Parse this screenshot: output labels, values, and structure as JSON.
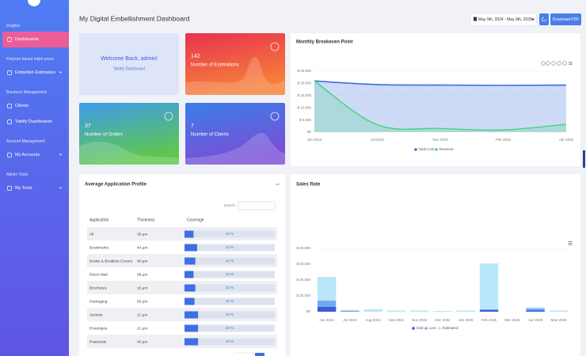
{
  "sidebar": {
    "sections": [
      {
        "heading": "Insights",
        "items": [
          {
            "label": "Dashboards",
            "active": true,
            "submenu": false
          }
        ]
      },
      {
        "heading": "Polymer based inkjet press",
        "items": [
          {
            "label": "Embellish Estimation",
            "active": false,
            "submenu": true
          }
        ]
      },
      {
        "heading": "Business Management",
        "items": [
          {
            "label": "Clients",
            "active": false,
            "submenu": false
          },
          {
            "label": "Taktify Dashboards",
            "active": false,
            "submenu": false
          }
        ]
      },
      {
        "heading": "Account Management",
        "items": [
          {
            "label": "My Accounts",
            "active": false,
            "submenu": true
          }
        ]
      },
      {
        "heading": "Admin Tools",
        "items": [
          {
            "label": "My Tools",
            "active": false,
            "submenu": true
          }
        ]
      }
    ]
  },
  "header": {
    "title": "My Digital Embellishment Dashboard",
    "date_range": "May 9th, 2024 - May 9th, 2025",
    "download_button": "Download PDF"
  },
  "welcome": {
    "title": "Welcome Back, admin!",
    "subtitle": "Taktify Dashboard"
  },
  "stats": [
    {
      "value": 142,
      "label": "Number of Estimations"
    },
    {
      "value": 37,
      "label": "Number of Orders"
    },
    {
      "value": 7,
      "label": "Number of Clients"
    }
  ],
  "application_profile": {
    "title": "Average Application Profile",
    "search_label": "Search:",
    "columns": [
      "Application",
      "Thickness",
      "Coverage"
    ],
    "rows": [
      [
        "All",
        "36 µm",
        {
          "value": 10,
          "label": "10 %"
        }
      ],
      [
        "Bookmarks",
        "44 µm",
        {
          "value": 14,
          "label": "14 %"
        }
      ],
      [
        "Books & Booklets Covers",
        "40 µm",
        {
          "value": 12,
          "label": "12 %"
        }
      ],
      [
        "Direct Mail",
        "58 µm",
        {
          "value": 10,
          "label": "10 %"
        }
      ],
      [
        "Brochures",
        "15 µm",
        {
          "value": 12,
          "label": "12 %"
        }
      ],
      [
        "Packaging",
        "50 µm",
        {
          "value": 11,
          "label": "11 %"
        }
      ],
      [
        "Jackets",
        "21 µm",
        {
          "value": 15,
          "label": "15 %"
        }
      ],
      [
        "Envelopes",
        "21 µm",
        {
          "value": 15,
          "label": "15 %"
        }
      ],
      [
        "Postcards",
        "40 µm",
        {
          "value": 15,
          "label": "15 %"
        }
      ]
    ]
  },
  "chart_data": [
    {
      "type": "line",
      "title": "Monthly Breakeven Point",
      "categories": [
        "Jun 2024",
        "Jul 2024",
        "Nov 2024",
        "Feb 2025",
        "Apr 2025"
      ],
      "series": [
        {
          "name": "Total Cost",
          "color": "#3c6fe0",
          "values": [
            21000,
            19500,
            19300,
            19200,
            19300
          ]
        },
        {
          "name": "Revenue",
          "color": "#4fd38a",
          "values": [
            21000,
            3000,
            1500,
            900,
            3200
          ]
        }
      ],
      "ylim": [
        0,
        25000
      ],
      "yticks": [
        {
          "value": 0,
          "label": "$0"
        },
        {
          "value": 5000,
          "label": "$ 5,000"
        },
        {
          "value": 10000,
          "label": "$ 10,000"
        },
        {
          "value": 15000,
          "label": "$ 15,000"
        },
        {
          "value": 20000,
          "label": "$ 20,000"
        },
        {
          "value": 25000,
          "label": "$ 25,000"
        }
      ],
      "grid": true,
      "area": true
    },
    {
      "type": "bar",
      "stacked": true,
      "title": "Sales Rate",
      "categories": [
        "Jun 2024",
        "Jul 2024",
        "Aug 2024",
        "Sep 2024",
        "Nov 2024",
        "Dec 2024",
        "Jan 2025",
        "Feb 2025",
        "Mar 2025",
        "Apr 2025",
        "May 2025"
      ],
      "series": [
        {
          "name": "Sold",
          "color": "#3b5bdb",
          "values": [
            6000,
            500,
            0,
            0,
            0,
            0,
            0,
            2000,
            0,
            1500,
            0
          ]
        },
        {
          "name": "Lost",
          "color": "#74a9f0",
          "values": [
            8000,
            300,
            0,
            0,
            0,
            0,
            0,
            1000,
            0,
            2500,
            0
          ]
        },
        {
          "name": "Estimated",
          "color": "#b9e6f8",
          "values": [
            30000,
            1500,
            3000,
            1500,
            1500,
            1000,
            1500,
            58000,
            0,
            1500,
            1500
          ]
        }
      ],
      "ylim": [
        0,
        80000
      ],
      "yticks": [
        {
          "value": 0,
          "label": "$0"
        },
        {
          "value": 20000,
          "label": "$ 20,000"
        },
        {
          "value": 40000,
          "label": "$ 40,000"
        },
        {
          "value": 60000,
          "label": "$ 60,000"
        },
        {
          "value": 80000,
          "label": "$ 80,000"
        }
      ],
      "grid": true
    }
  ]
}
